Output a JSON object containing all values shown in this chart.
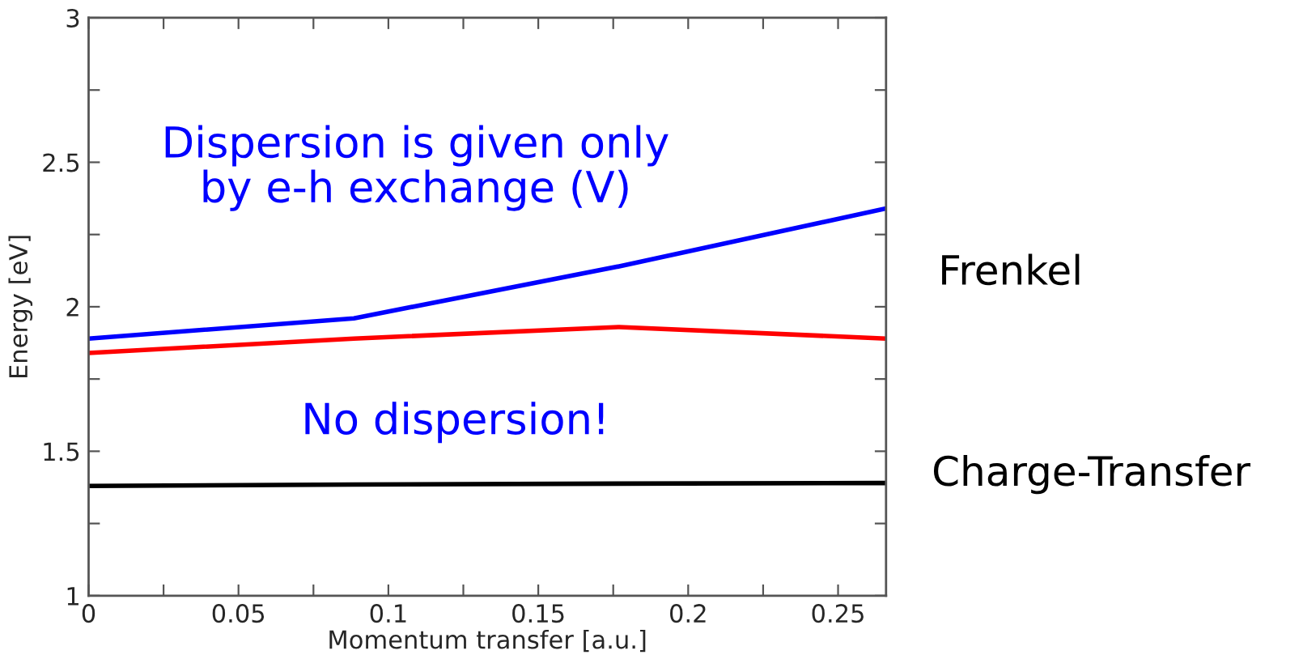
{
  "chart_data": {
    "type": "line",
    "xlabel": "Momentum transfer [a.u.]",
    "ylabel": "Energy [eV]",
    "xlim": [
      0,
      0.266
    ],
    "ylim": [
      1,
      3
    ],
    "xticks": [
      0,
      {
        "value": 0.025,
        "label": null
      },
      0.05,
      {
        "value": 0.075,
        "label": null
      },
      0.1,
      {
        "value": 0.125,
        "label": null
      },
      0.15,
      {
        "value": 0.175,
        "label": null
      },
      0.2,
      {
        "value": 0.225,
        "label": null
      },
      0.25
    ],
    "yticks": [
      1,
      {
        "value": 1.25,
        "label": null
      },
      1.5,
      {
        "value": 1.75,
        "label": null
      },
      2,
      {
        "value": 2.25,
        "label": null
      },
      2.5,
      {
        "value": 2.75,
        "label": null
      },
      3
    ],
    "grid": false,
    "marker": "none",
    "line_style": "solid",
    "series": [
      {
        "color": "#0000ff",
        "x": [
          0,
          0.0885,
          0.177,
          0.266
        ],
        "values": [
          1.89,
          1.96,
          2.14,
          2.34
        ]
      },
      {
        "color": "#ff0000",
        "x": [
          0,
          0.0885,
          0.177,
          0.266
        ],
        "values": [
          1.84,
          1.89,
          1.93,
          1.89
        ]
      },
      {
        "color": "#000000",
        "x": [
          0,
          0.0885,
          0.177,
          0.266
        ],
        "values": [
          1.38,
          1.385,
          1.388,
          1.39
        ]
      }
    ],
    "annotations": [
      "Dispersion is given only\nby e-h exchange (V)",
      "No dispersion!",
      "Frenkel",
      "Charge-Transfer"
    ]
  }
}
